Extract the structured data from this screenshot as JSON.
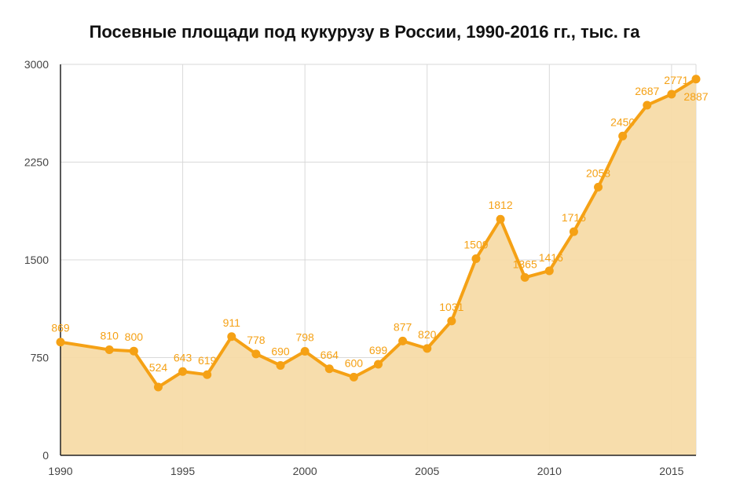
{
  "chart_data": {
    "type": "area",
    "title": "Посевные площади под кукурузу в России, 1990-2016 гг., тыс. га",
    "x": [
      1990,
      1992,
      1993,
      1994,
      1995,
      1996,
      1997,
      1998,
      1999,
      2000,
      2001,
      2002,
      2003,
      2004,
      2005,
      2006,
      2007,
      2008,
      2009,
      2010,
      2011,
      2012,
      2013,
      2014,
      2015,
      2016
    ],
    "values": [
      869,
      810,
      800,
      524,
      643,
      619,
      911,
      778,
      690,
      798,
      664,
      600,
      699,
      877,
      820,
      1031,
      1509,
      1812,
      1365,
      1416,
      1716,
      2058,
      2450,
      2687,
      2771,
      2887
    ],
    "data_labels": [
      "869",
      "810",
      "800",
      "524",
      "643",
      "619",
      "911",
      "778",
      "690",
      "798",
      "664",
      "600",
      "699",
      "877",
      "820",
      "1031",
      "1509",
      "1812",
      "1365",
      "1416",
      "1716",
      "2058",
      "2450",
      "2687",
      "2771",
      "2887"
    ],
    "xlim": [
      1990,
      2016
    ],
    "ylim": [
      0,
      3000
    ],
    "x_ticks": [
      1990,
      1995,
      2000,
      2005,
      2010,
      2015
    ],
    "x_tick_labels": [
      "1990",
      "1995",
      "2000",
      "2005",
      "2010",
      "2015"
    ],
    "y_ticks": [
      0,
      750,
      1500,
      2250,
      3000
    ],
    "y_tick_labels": [
      "0",
      "750",
      "1500",
      "2250",
      "3000"
    ],
    "xlabel": "",
    "ylabel": "",
    "grid": true,
    "legend": "none",
    "colors": {
      "line": "#f5a115",
      "fill": "#f7dba8",
      "label": "#f5a115",
      "grid": "#d9d9d9",
      "axis": "#222222"
    }
  }
}
